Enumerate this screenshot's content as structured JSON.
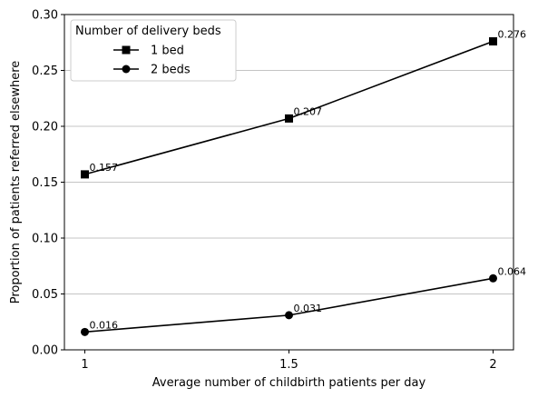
{
  "chart_data": {
    "type": "line",
    "title": "",
    "xlabel": "Average number of childbirth patients per day",
    "ylabel": "Proportion of patients referred elsewhere",
    "x": [
      1,
      1.5,
      2
    ],
    "x_tick_labels": [
      "1",
      "1.5",
      "2"
    ],
    "xlim": [
      0.95,
      2.05
    ],
    "ylim": [
      0,
      0.3
    ],
    "y_ticks": [
      0,
      0.05,
      0.1,
      0.15,
      0.2,
      0.25,
      0.3
    ],
    "y_tick_labels": [
      "0.00",
      "0.05",
      "0.10",
      "0.15",
      "0.20",
      "0.25",
      "0.30"
    ],
    "grid": "horizontal",
    "legend": {
      "title": "Number of delivery beds",
      "placement": "top-left"
    },
    "series": [
      {
        "name": "1 bed",
        "marker": "square",
        "color": "#000000",
        "values": [
          0.157,
          0.207,
          0.276
        ],
        "data_labels": [
          "0.157",
          "0.207",
          "0.276"
        ]
      },
      {
        "name": "2 beds",
        "marker": "circle",
        "color": "#000000",
        "values": [
          0.016,
          0.031,
          0.064
        ],
        "data_labels": [
          "0.016",
          "0.031",
          "0.064"
        ]
      }
    ]
  }
}
